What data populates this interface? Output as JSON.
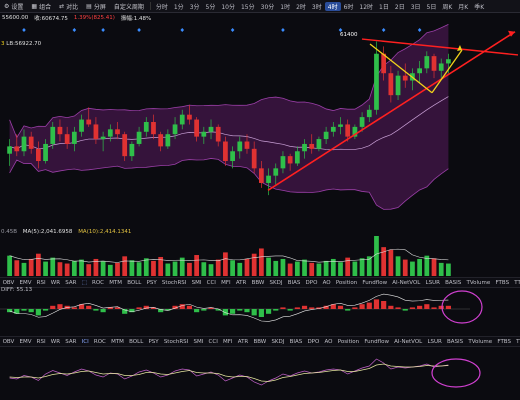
{
  "toolbar": {
    "left_items": [
      {
        "icon": "gear-icon",
        "label": "设置"
      },
      {
        "icon": "grid-icon",
        "label": "组合"
      },
      {
        "icon": "compare-icon",
        "label": "对比"
      },
      {
        "icon": "timeshare-icon",
        "label": "分屏"
      },
      {
        "icon": "",
        "label": "自定义周期"
      }
    ],
    "timeframes": [
      "分时",
      "1分",
      "3分",
      "5分",
      "10分",
      "15分",
      "30分",
      "1时",
      "2时",
      "3时",
      "4时",
      "6时",
      "12时",
      "1日",
      "2日",
      "3日",
      "5日",
      "周K",
      "月K",
      "季K"
    ],
    "active_timeframe": "4时"
  },
  "info_bar": {
    "items": [
      {
        "text": "55600.00",
        "color": "#e0e0e0"
      },
      {
        "text": "收:60674.75",
        "color": "#e0e0e0"
      },
      {
        "text": "1.39%(825.41)",
        "color": "#ff4040"
      },
      {
        "text": "振幅:1.48%",
        "color": "#e0e0e0"
      }
    ]
  },
  "boll_label": {
    "prefix": "3",
    "text": "LB:56922.70"
  },
  "price_annotation": "61400",
  "volume_label": {
    "left": "0.45B",
    "ma5": "MA(5):2,041.6958",
    "ma10": "MA(10):2,414.1341"
  },
  "indicator_tabs": [
    "OBV",
    "EMV",
    "RSI",
    "WR",
    "SAR",
    "⬚",
    "ROC",
    "MTM",
    "BOLL",
    "PSY",
    "StochRSI",
    "SMI",
    "CCI",
    "MFI",
    "ATR",
    "BBW",
    "SKDJ",
    "BIAS",
    "DPO",
    "AO",
    "Position",
    "Fundflow",
    "AI-NetVOL",
    "LSUR",
    "BASIS",
    "TVolume",
    "FTBS",
    "TTSI",
    "TTMU"
  ],
  "indicator_tabs2": [
    "OBV",
    "EMV",
    "RSI",
    "WR",
    "SAR",
    "ICI",
    "ROC",
    "MTM",
    "BOLL",
    "PSY",
    "StochRSI",
    "SMI",
    "CCI",
    "MFI",
    "ATR",
    "BBW",
    "SKDJ",
    "BIAS",
    "DPO",
    "AO",
    "Position",
    "Fundflow",
    "AI-NetVOL",
    "LSUR",
    "BASIS",
    "TVolume",
    "FTBS",
    "TTSI",
    "TTMU"
  ],
  "macd_label": "DIFF: 55.13",
  "colors": {
    "up": "#2fbf4a",
    "down": "#e03232",
    "band_fill": "#3a1440",
    "band_line": "#9b3fa8",
    "mid_line": "#c9a0d6",
    "trend": "#ff2020",
    "arrow": "#f2d21a",
    "circle": "#d040d0"
  },
  "chart_data": {
    "type": "candlestick",
    "ylim": [
      54000,
      62200
    ],
    "candles": [
      [
        56800,
        57400,
        56300,
        57100
      ],
      [
        57100,
        57600,
        56700,
        56900
      ],
      [
        56900,
        57800,
        56700,
        57500
      ],
      [
        57500,
        57700,
        56800,
        57000
      ],
      [
        57000,
        57300,
        56200,
        56500
      ],
      [
        56500,
        57400,
        56400,
        57200
      ],
      [
        57200,
        58100,
        57000,
        57900
      ],
      [
        57900,
        58200,
        57300,
        57600
      ],
      [
        57600,
        57900,
        57000,
        57200
      ],
      [
        57200,
        57900,
        56900,
        57700
      ],
      [
        57700,
        58400,
        57500,
        58200
      ],
      [
        58200,
        58700,
        57900,
        58000
      ],
      [
        58000,
        58300,
        57200,
        57400
      ],
      [
        57400,
        57700,
        56900,
        57500
      ],
      [
        57500,
        58000,
        57300,
        57800
      ],
      [
        57800,
        58100,
        57400,
        57600
      ],
      [
        57600,
        57700,
        56500,
        56700
      ],
      [
        56700,
        57300,
        56500,
        57200
      ],
      [
        57200,
        57900,
        57100,
        57700
      ],
      [
        57700,
        58300,
        57500,
        58100
      ],
      [
        58100,
        58400,
        57400,
        57600
      ],
      [
        57600,
        57700,
        56900,
        57100
      ],
      [
        57100,
        57800,
        57000,
        57600
      ],
      [
        57600,
        58300,
        57400,
        58000
      ],
      [
        58000,
        58600,
        57800,
        58400
      ],
      [
        58400,
        58800,
        58000,
        58200
      ],
      [
        58200,
        58300,
        57300,
        57500
      ],
      [
        57500,
        57900,
        57200,
        57700
      ],
      [
        57700,
        58200,
        57400,
        57900
      ],
      [
        57900,
        58000,
        57100,
        57300
      ],
      [
        57300,
        57500,
        56300,
        56500
      ],
      [
        56500,
        57100,
        56200,
        56900
      ],
      [
        56900,
        57500,
        56600,
        57300
      ],
      [
        57300,
        57600,
        56800,
        57000
      ],
      [
        57000,
        57300,
        56000,
        56200
      ],
      [
        56200,
        56500,
        55400,
        55600
      ],
      [
        55600,
        56200,
        55100,
        55900
      ],
      [
        55900,
        56400,
        55500,
        56200
      ],
      [
        56200,
        56900,
        56000,
        56700
      ],
      [
        56700,
        56800,
        56100,
        56400
      ],
      [
        56400,
        57100,
        56300,
        56900
      ],
      [
        56900,
        57400,
        56600,
        57200
      ],
      [
        57200,
        57600,
        56800,
        57000
      ],
      [
        57000,
        57500,
        56900,
        57400
      ],
      [
        57400,
        57900,
        57200,
        57700
      ],
      [
        57700,
        58100,
        57500,
        57900
      ],
      [
        57900,
        58300,
        57600,
        58000
      ],
      [
        58000,
        58200,
        57300,
        57500
      ],
      [
        57500,
        58000,
        57400,
        57900
      ],
      [
        57900,
        58500,
        57700,
        58300
      ],
      [
        58300,
        58800,
        58100,
        58600
      ],
      [
        58600,
        61400,
        58400,
        60900
      ],
      [
        60900,
        61200,
        59800,
        60100
      ],
      [
        60100,
        60400,
        58900,
        59200
      ],
      [
        59200,
        60200,
        59000,
        60000
      ],
      [
        60000,
        60500,
        59500,
        59800
      ],
      [
        59800,
        60300,
        59400,
        60100
      ],
      [
        60100,
        60600,
        59700,
        60300
      ],
      [
        60300,
        61000,
        60100,
        60800
      ],
      [
        60800,
        60900,
        59900,
        60200
      ],
      [
        60200,
        60700,
        59900,
        60500
      ],
      [
        60500,
        60900,
        60100,
        60674
      ]
    ],
    "volume": [
      3.1,
      2.4,
      2.0,
      2.6,
      3.4,
      2.2,
      2.8,
      2.1,
      1.9,
      2.3,
      2.5,
      1.8,
      2.6,
      2.2,
      1.7,
      2.0,
      3.0,
      2.4,
      2.1,
      2.7,
      2.3,
      2.9,
      1.9,
      2.2,
      2.8,
      2.0,
      3.2,
      2.1,
      1.8,
      2.5,
      3.6,
      2.4,
      2.0,
      2.6,
      3.4,
      4.2,
      2.8,
      2.3,
      2.6,
      1.9,
      2.2,
      2.5,
      2.0,
      1.9,
      2.3,
      2.6,
      2.1,
      2.8,
      2.2,
      2.7,
      3.0,
      6.1,
      4.4,
      4.0,
      3.0,
      2.5,
      2.2,
      2.6,
      3.1,
      2.7,
      2.0,
      1.9
    ],
    "macd_hist": [
      -2,
      -3,
      -1,
      -2,
      -4,
      -1,
      2,
      3,
      2,
      1,
      3,
      2,
      -1,
      -2,
      1,
      1,
      -3,
      -2,
      1,
      2,
      1,
      -2,
      -1,
      2,
      3,
      2,
      -2,
      -1,
      1,
      -1,
      -4,
      -3,
      -1,
      -2,
      -4,
      -5,
      -3,
      -1,
      1,
      -1,
      1,
      2,
      1,
      1,
      2,
      3,
      2,
      -1,
      1,
      3,
      4,
      6,
      5,
      2,
      1,
      -1,
      1,
      2,
      3,
      1,
      2,
      2
    ],
    "osc_a": [
      40,
      38,
      45,
      42,
      35,
      48,
      55,
      50,
      45,
      52,
      58,
      54,
      46,
      42,
      50,
      48,
      38,
      44,
      52,
      56,
      50,
      42,
      46,
      54,
      58,
      56,
      44,
      48,
      52,
      46,
      34,
      40,
      46,
      42,
      32,
      26,
      34,
      40,
      48,
      44,
      50,
      54,
      50,
      52,
      56,
      58,
      56,
      48,
      54,
      60,
      64,
      78,
      70,
      58,
      62,
      60,
      62,
      64,
      68,
      62,
      64,
      66
    ],
    "osc_b": [
      42,
      41,
      42,
      42,
      40,
      43,
      47,
      49,
      48,
      50,
      53,
      54,
      51,
      48,
      49,
      49,
      45,
      45,
      47,
      51,
      51,
      48,
      47,
      50,
      53,
      55,
      51,
      50,
      50,
      49,
      44,
      42,
      43,
      43,
      39,
      34,
      33,
      36,
      41,
      43,
      46,
      49,
      50,
      51,
      53,
      55,
      56,
      53,
      53,
      56,
      59,
      66,
      68,
      64,
      63,
      62,
      62,
      63,
      65,
      64,
      64,
      65
    ]
  }
}
